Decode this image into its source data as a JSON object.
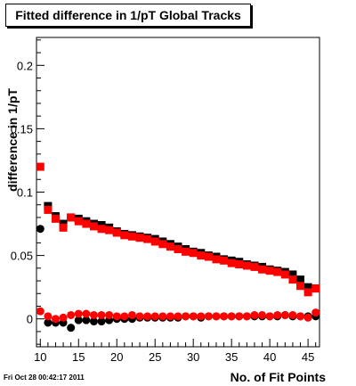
{
  "chart_data": {
    "type": "scatter",
    "title": "Fitted difference in 1/pT  Global Tracks",
    "xlabel": "No. of Fit Points",
    "ylabel": "difference in 1/pT",
    "xlim": [
      9.5,
      46.5
    ],
    "ylim": [
      -0.022,
      0.222
    ],
    "x_ticks": [
      10,
      15,
      20,
      25,
      30,
      35,
      40,
      45
    ],
    "x_tick_labels": [
      "10",
      "15",
      "20",
      "25",
      "30",
      "35",
      "40",
      "45"
    ],
    "y_ticks": [
      0,
      0.05,
      0.1,
      0.15,
      0.2
    ],
    "y_tick_labels": [
      "0",
      "0.05",
      "0.1",
      "0.15",
      "0.2"
    ],
    "grid": false,
    "legend": "none",
    "series": [
      {
        "role": "black-squares",
        "marker": "square",
        "color": "#000000",
        "x": [
          11,
          12,
          13,
          14,
          15,
          16,
          17,
          18,
          19,
          20,
          21,
          22,
          23,
          24,
          25,
          26,
          27,
          28,
          29,
          30,
          31,
          32,
          33,
          34,
          35,
          36,
          37,
          38,
          39,
          40,
          41,
          42,
          43,
          44,
          45,
          46
        ],
        "y": [
          0.089,
          0.081,
          0.075,
          0.08,
          0.079,
          0.077,
          0.075,
          0.074,
          0.072,
          0.069,
          0.067,
          0.066,
          0.065,
          0.064,
          0.063,
          0.061,
          0.059,
          0.057,
          0.055,
          0.053,
          0.052,
          0.05,
          0.049,
          0.047,
          0.046,
          0.045,
          0.043,
          0.042,
          0.041,
          0.039,
          0.038,
          0.037,
          0.035,
          0.031,
          0.025,
          0.024
        ]
      },
      {
        "role": "red-squares",
        "marker": "square",
        "color": "#ff0000",
        "x": [
          10,
          11,
          12,
          13,
          14,
          15,
          16,
          17,
          18,
          19,
          20,
          21,
          22,
          23,
          24,
          25,
          26,
          27,
          28,
          29,
          30,
          31,
          32,
          33,
          34,
          35,
          36,
          37,
          38,
          39,
          40,
          41,
          42,
          43,
          44,
          45,
          46
        ],
        "y": [
          0.12,
          0.086,
          0.079,
          0.072,
          0.08,
          0.077,
          0.075,
          0.073,
          0.071,
          0.07,
          0.068,
          0.066,
          0.065,
          0.064,
          0.063,
          0.061,
          0.059,
          0.057,
          0.055,
          0.053,
          0.052,
          0.05,
          0.049,
          0.047,
          0.046,
          0.044,
          0.043,
          0.042,
          0.041,
          0.039,
          0.038,
          0.037,
          0.035,
          0.031,
          0.026,
          0.021,
          0.024
        ]
      },
      {
        "role": "black-circles",
        "marker": "circle",
        "color": "#000000",
        "x": [
          10,
          11,
          12,
          13,
          14,
          15,
          16,
          17,
          18,
          19,
          20,
          21,
          22,
          23,
          24,
          25,
          26,
          27,
          28,
          29,
          30,
          31,
          32,
          33,
          34,
          35,
          36,
          37,
          38,
          39,
          40,
          41,
          42,
          43,
          44,
          45,
          46
        ],
        "y": [
          0.071,
          -0.003,
          -0.003,
          -0.003,
          -0.007,
          -0.001,
          -0.001,
          -0.002,
          -0.002,
          -0.001,
          0.0,
          0.0,
          0.0,
          0.001,
          0.001,
          0.001,
          0.001,
          0.001,
          0.001,
          0.002,
          0.002,
          0.001,
          0.002,
          0.002,
          0.002,
          0.002,
          0.002,
          0.002,
          0.002,
          0.002,
          0.002,
          0.002,
          0.003,
          0.002,
          0.002,
          0.002,
          0.002
        ]
      },
      {
        "role": "red-circles",
        "marker": "circle",
        "color": "#ff0000",
        "x": [
          10,
          11,
          12,
          13,
          14,
          15,
          16,
          17,
          18,
          19,
          20,
          21,
          22,
          23,
          24,
          25,
          26,
          27,
          28,
          29,
          30,
          31,
          32,
          33,
          34,
          35,
          36,
          37,
          38,
          39,
          40,
          41,
          42,
          43,
          44,
          45,
          46
        ],
        "y": [
          0.006,
          0.002,
          0.0,
          0.001,
          0.003,
          0.004,
          0.004,
          0.003,
          0.003,
          0.003,
          0.002,
          0.002,
          0.003,
          0.002,
          0.002,
          0.002,
          0.002,
          0.002,
          0.002,
          0.002,
          0.002,
          0.002,
          0.002,
          0.002,
          0.002,
          0.002,
          0.002,
          0.002,
          0.003,
          0.003,
          0.002,
          0.003,
          0.003,
          0.003,
          0.002,
          0.001,
          0.005
        ]
      }
    ]
  },
  "footer": {
    "timestamp": "Fri Oct 28 00:42:17 2011"
  }
}
